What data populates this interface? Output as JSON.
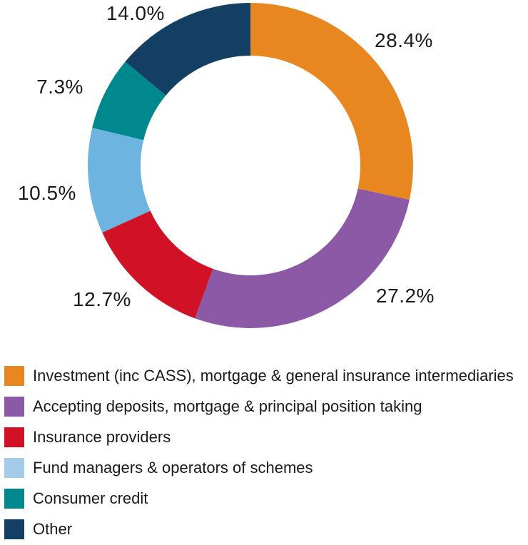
{
  "chart_data": {
    "type": "pie",
    "variant": "donut",
    "title": "",
    "direction": "clockwise",
    "start_angle_deg": 0,
    "inner_radius_ratio": 0.675,
    "legend_position": "bottom",
    "background": "#FFFFFF",
    "label_color": "#1A1A1A",
    "series": [
      {
        "label": "Investment (inc CASS), mortgage & general insurance intermediaries",
        "value": 28.4,
        "display": "28.4%",
        "color": "#E8871F",
        "legend_color": "#E8871F"
      },
      {
        "label": "Accepting deposits, mortgage & principal position taking",
        "value": 27.2,
        "display": "27.2%",
        "color": "#8B59A5",
        "legend_color": "#8B59A5"
      },
      {
        "label": "Insurance providers",
        "value": 12.7,
        "display": "12.7%",
        "color": "#D01126",
        "legend_color": "#D01126"
      },
      {
        "label": "Fund managers & operators of schemes",
        "value": 10.5,
        "display": "10.5%",
        "color": "#6DB4E1",
        "legend_color": "#A4CCE9"
      },
      {
        "label": "Consumer credit",
        "value": 7.3,
        "display": "7.3%",
        "color": "#00888F",
        "legend_color": "#00888F"
      },
      {
        "label": "Other",
        "value": 14.0,
        "display": "14.0%",
        "color": "#133F64",
        "legend_color": "#133F64"
      }
    ]
  }
}
